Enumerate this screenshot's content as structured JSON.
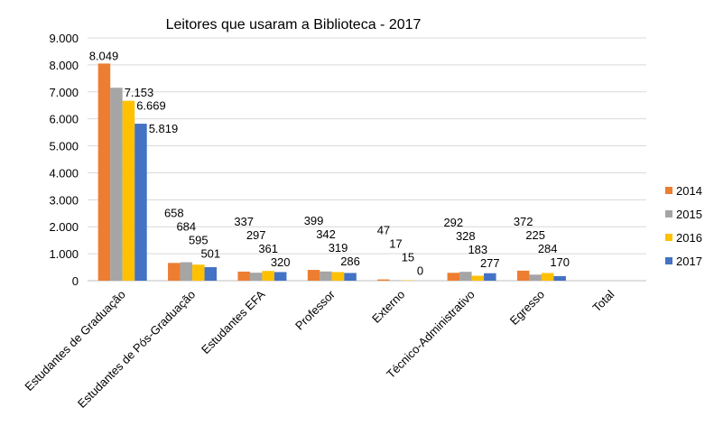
{
  "chart_data": {
    "type": "bar",
    "title": "Leitores que usaram a Biblioteca  - 2017",
    "xlabel": "",
    "ylabel": "",
    "ylim": [
      0,
      9000
    ],
    "yticks": [
      "0",
      "1.000",
      "2.000",
      "3.000",
      "4.000",
      "5.000",
      "6.000",
      "7.000",
      "8.000",
      "9.000"
    ],
    "grid": true,
    "legend_position": "right",
    "categories": [
      "Estudantes de Graduação",
      "Estudantes de Pós-Graduação",
      "Estudantes EFA",
      "Professor",
      "Externo",
      "Técnico-Administrativo",
      "Egresso",
      "Total"
    ],
    "series": [
      {
        "name": "2014",
        "color": "#ED7D31",
        "values": [
          8049,
          658,
          337,
          399,
          47,
          292,
          372,
          null
        ]
      },
      {
        "name": "2015",
        "color": "#A5A5A5",
        "values": [
          7153,
          684,
          297,
          342,
          17,
          328,
          225,
          null
        ]
      },
      {
        "name": "2016",
        "color": "#FFC000",
        "values": [
          6669,
          595,
          361,
          319,
          15,
          183,
          284,
          null
        ]
      },
      {
        "name": "2017",
        "color": "#4472C4",
        "values": [
          5819,
          501,
          320,
          286,
          0,
          277,
          170,
          null
        ]
      }
    ],
    "data_labels": [
      [
        "8.049",
        "658",
        "337",
        "399",
        "47",
        "292",
        "372",
        ""
      ],
      [
        "7.153",
        "684",
        "297",
        "342",
        "17",
        "328",
        "225",
        ""
      ],
      [
        "6.669",
        "595",
        "361",
        "319",
        "15",
        "183",
        "284",
        ""
      ],
      [
        "5.819",
        "501",
        "320",
        "286",
        "0",
        "277",
        "170",
        ""
      ]
    ]
  }
}
